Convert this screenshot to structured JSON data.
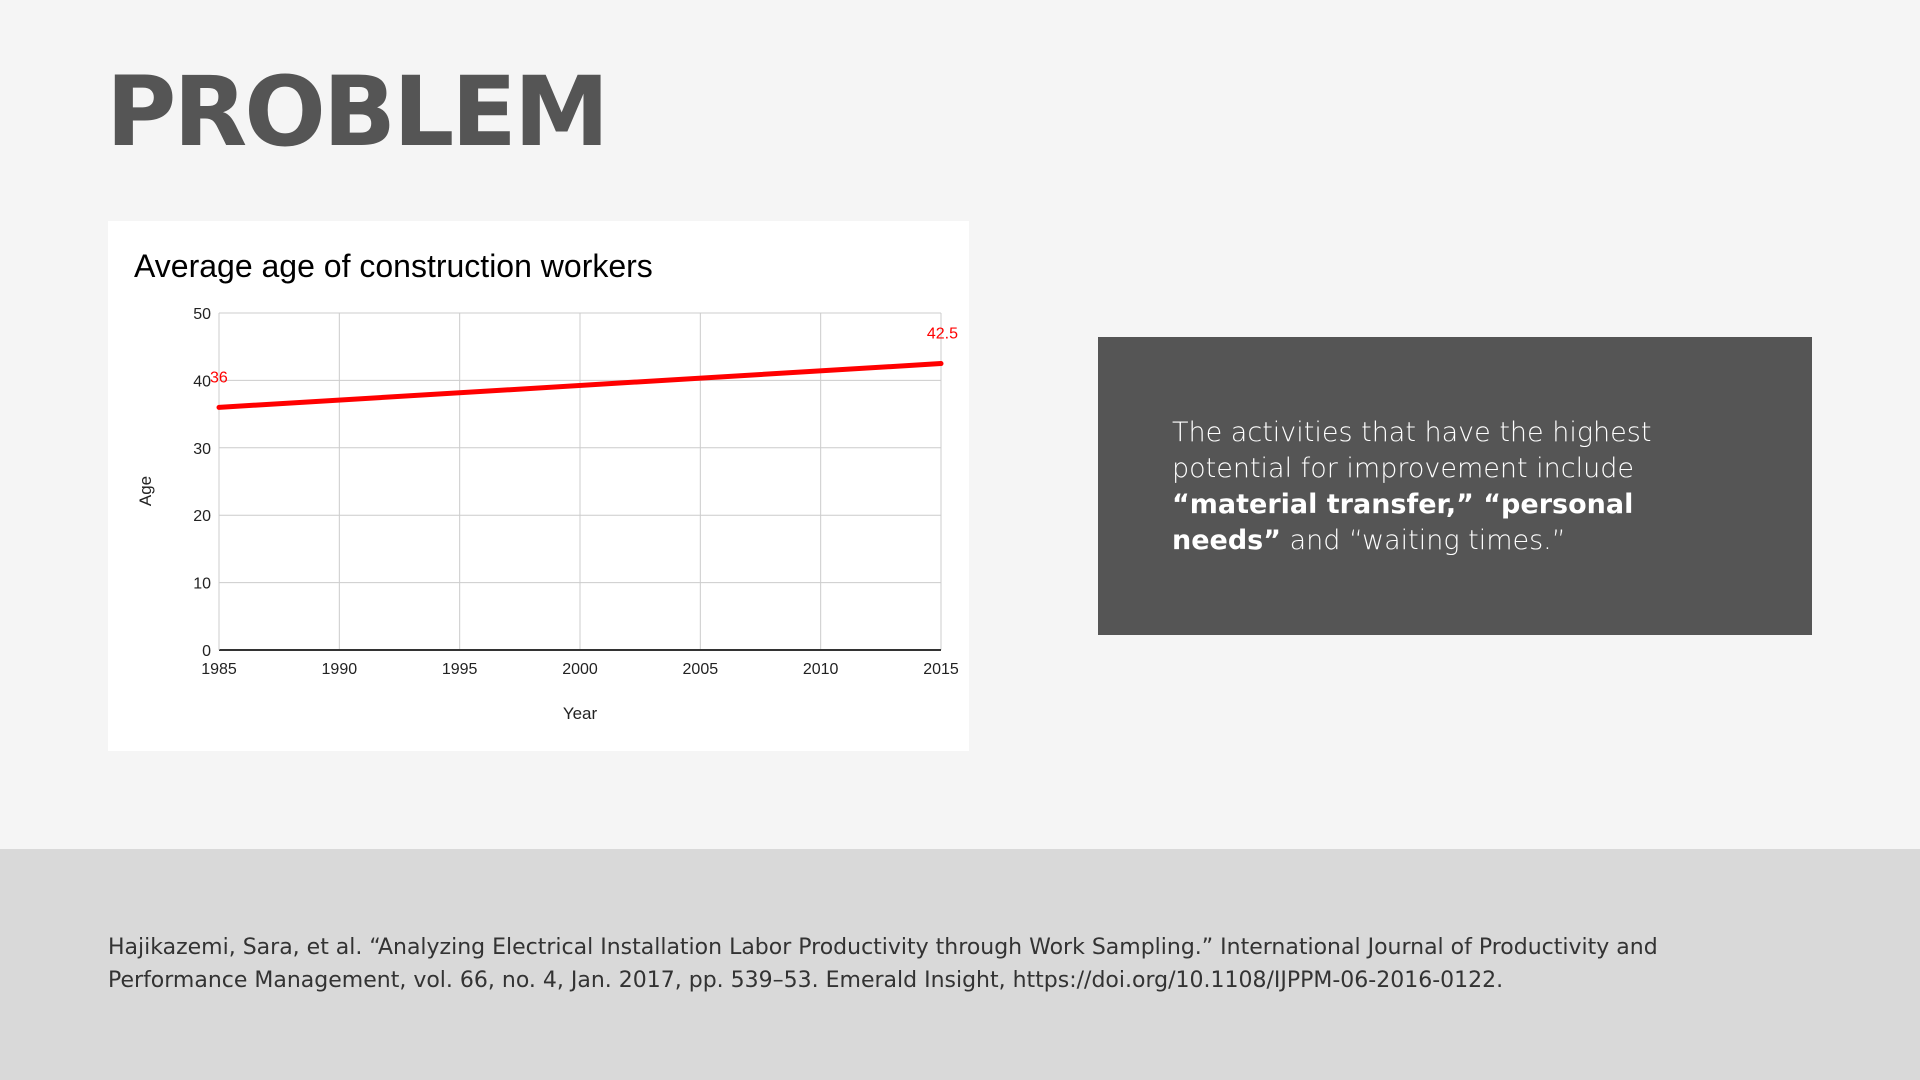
{
  "slide": {
    "title": "PROBLEM"
  },
  "callout": {
    "text_before": "The activities that have the highest potential for improvement include ",
    "bold_1": "“material transfer,”  “personal needs”",
    "text_after": " and “waiting times.”"
  },
  "footer": {
    "citation": "Hajikazemi, Sara, et al. “Analyzing Electrical Installation Labor Productivity through Work Sampling.” International Journal of Productivity and Performance Management, vol. 66, no. 4, Jan. 2017, pp. 539–53. Emerald Insight, https://doi.org/10.1108/IJPPM-06-2016-0122."
  },
  "colors": {
    "background": "#f5f5f5",
    "title": "#555555",
    "callout_bg": "#555555",
    "footer_bg": "#d9d9d9",
    "series": "#ff0000"
  },
  "chart_data": {
    "type": "line",
    "title": "Average age of construction workers",
    "xlabel": "Year",
    "ylabel": "Age",
    "xlim": [
      1985,
      2015
    ],
    "ylim": [
      0,
      50
    ],
    "x_ticks": [
      1985,
      1990,
      1995,
      2000,
      2005,
      2010,
      2015
    ],
    "y_ticks": [
      0,
      10,
      20,
      30,
      40,
      50
    ],
    "grid": true,
    "legend": "none",
    "series": [
      {
        "x": [
          1985,
          2015
        ],
        "values": [
          36,
          42.5
        ],
        "color": "#ff0000",
        "data_labels": [
          "36",
          "42.5"
        ]
      }
    ]
  }
}
